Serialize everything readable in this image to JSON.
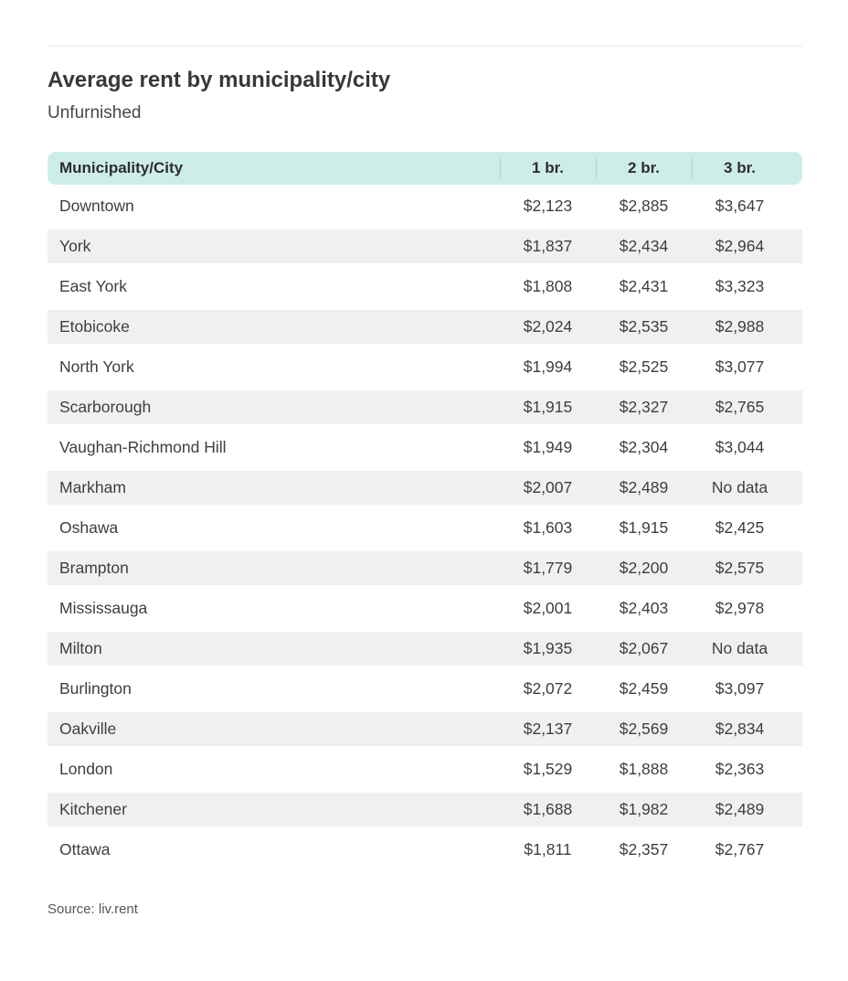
{
  "page": {
    "title": "Average rent by municipality/city",
    "subtitle": "Unfurnished",
    "source": "Source: liv.rent"
  },
  "table": {
    "columns": [
      "Municipality/City",
      "1 br.",
      "2 br.",
      "3 br."
    ],
    "rows": [
      {
        "municipality": "Downtown",
        "br1": "$2,123",
        "br2": "$2,885",
        "br3": "$3,647"
      },
      {
        "municipality": "York",
        "br1": "$1,837",
        "br2": "$2,434",
        "br3": "$2,964"
      },
      {
        "municipality": "East York",
        "br1": "$1,808",
        "br2": "$2,431",
        "br3": "$3,323"
      },
      {
        "municipality": "Etobicoke",
        "br1": "$2,024",
        "br2": "$2,535",
        "br3": "$2,988"
      },
      {
        "municipality": "North York",
        "br1": "$1,994",
        "br2": "$2,525",
        "br3": "$3,077"
      },
      {
        "municipality": "Scarborough",
        "br1": "$1,915",
        "br2": "$2,327",
        "br3": "$2,765"
      },
      {
        "municipality": "Vaughan-Richmond Hill",
        "br1": "$1,949",
        "br2": "$2,304",
        "br3": "$3,044"
      },
      {
        "municipality": "Markham",
        "br1": "$2,007",
        "br2": "$2,489",
        "br3": "No data"
      },
      {
        "municipality": "Oshawa",
        "br1": "$1,603",
        "br2": "$1,915",
        "br3": "$2,425"
      },
      {
        "municipality": "Brampton",
        "br1": "$1,779",
        "br2": "$2,200",
        "br3": "$2,575"
      },
      {
        "municipality": "Mississauga",
        "br1": "$2,001",
        "br2": "$2,403",
        "br3": "$2,978"
      },
      {
        "municipality": "Milton",
        "br1": "$1,935",
        "br2": "$2,067",
        "br3": "No data"
      },
      {
        "municipality": "Burlington",
        "br1": "$2,072",
        "br2": "$2,459",
        "br3": "$3,097"
      },
      {
        "municipality": "Oakville",
        "br1": "$2,137",
        "br2": "$2,569",
        "br3": "$2,834"
      },
      {
        "municipality": "London",
        "br1": "$1,529",
        "br2": "$1,888",
        "br3": "$2,363"
      },
      {
        "municipality": "Kitchener",
        "br1": "$1,688",
        "br2": "$1,982",
        "br3": "$2,489"
      },
      {
        "municipality": "Ottawa",
        "br1": "$1,811",
        "br2": "$2,357",
        "br3": "$2,767"
      }
    ]
  },
  "colors": {
    "header_bg": "#cdeee7",
    "row_alt_bg": "#f0f0f0",
    "divider": "#b5cfc9",
    "rule": "#f1f1f1"
  },
  "chart_data": {
    "type": "table",
    "title": "Average rent by municipality/city",
    "subtitle": "Unfurnished",
    "columns": [
      "Municipality/City",
      "1 br.",
      "2 br.",
      "3 br."
    ],
    "categories": [
      "Downtown",
      "York",
      "East York",
      "Etobicoke",
      "North York",
      "Scarborough",
      "Vaughan-Richmond Hill",
      "Markham",
      "Oshawa",
      "Brampton",
      "Mississauga",
      "Milton",
      "Burlington",
      "Oakville",
      "London",
      "Kitchener",
      "Ottawa"
    ],
    "series": [
      {
        "name": "1 br.",
        "values": [
          2123,
          1837,
          1808,
          2024,
          1994,
          1915,
          1949,
          2007,
          1603,
          1779,
          2001,
          1935,
          2072,
          2137,
          1529,
          1688,
          1811
        ]
      },
      {
        "name": "2 br.",
        "values": [
          2885,
          2434,
          2431,
          2535,
          2525,
          2327,
          2304,
          2489,
          1915,
          2200,
          2403,
          2067,
          2459,
          2569,
          1888,
          1982,
          2357
        ]
      },
      {
        "name": "3 br.",
        "values": [
          3647,
          2964,
          3323,
          2988,
          3077,
          2765,
          3044,
          null,
          2425,
          2575,
          2978,
          null,
          3097,
          2834,
          2363,
          2489,
          2767
        ]
      }
    ],
    "missing_value_label": "No data",
    "source": "Source: liv.rent"
  }
}
